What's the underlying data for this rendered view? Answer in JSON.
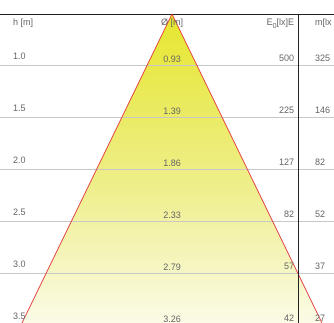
{
  "header": {
    "h": "h [m]",
    "diameter": "Ø [m]",
    "e_base": "E",
    "e_sub": "0",
    "e_tail": "[lx]E",
    "m": "m[lx"
  },
  "rows": [
    {
      "h": "1.0",
      "d": "0.93",
      "e": "500",
      "m": "325"
    },
    {
      "h": "1.5",
      "d": "1.39",
      "e": "225",
      "m": "146"
    },
    {
      "h": "2.0",
      "d": "1.86",
      "e": "127",
      "m": "82"
    },
    {
      "h": "2.5",
      "d": "2.33",
      "e": "82",
      "m": "52"
    },
    {
      "h": "3.0",
      "d": "2.79",
      "e": "57",
      "m": "37"
    },
    {
      "h": "3.5",
      "d": "3.26",
      "e": "42",
      "m": "27"
    }
  ],
  "colors": {
    "cone_top": "#e6e62e",
    "cone_bottom": "#fbfbe6",
    "cone_edge": "#e0242a",
    "grid": "#c8c8c8",
    "frame": "#222222",
    "text": "#666666"
  }
}
